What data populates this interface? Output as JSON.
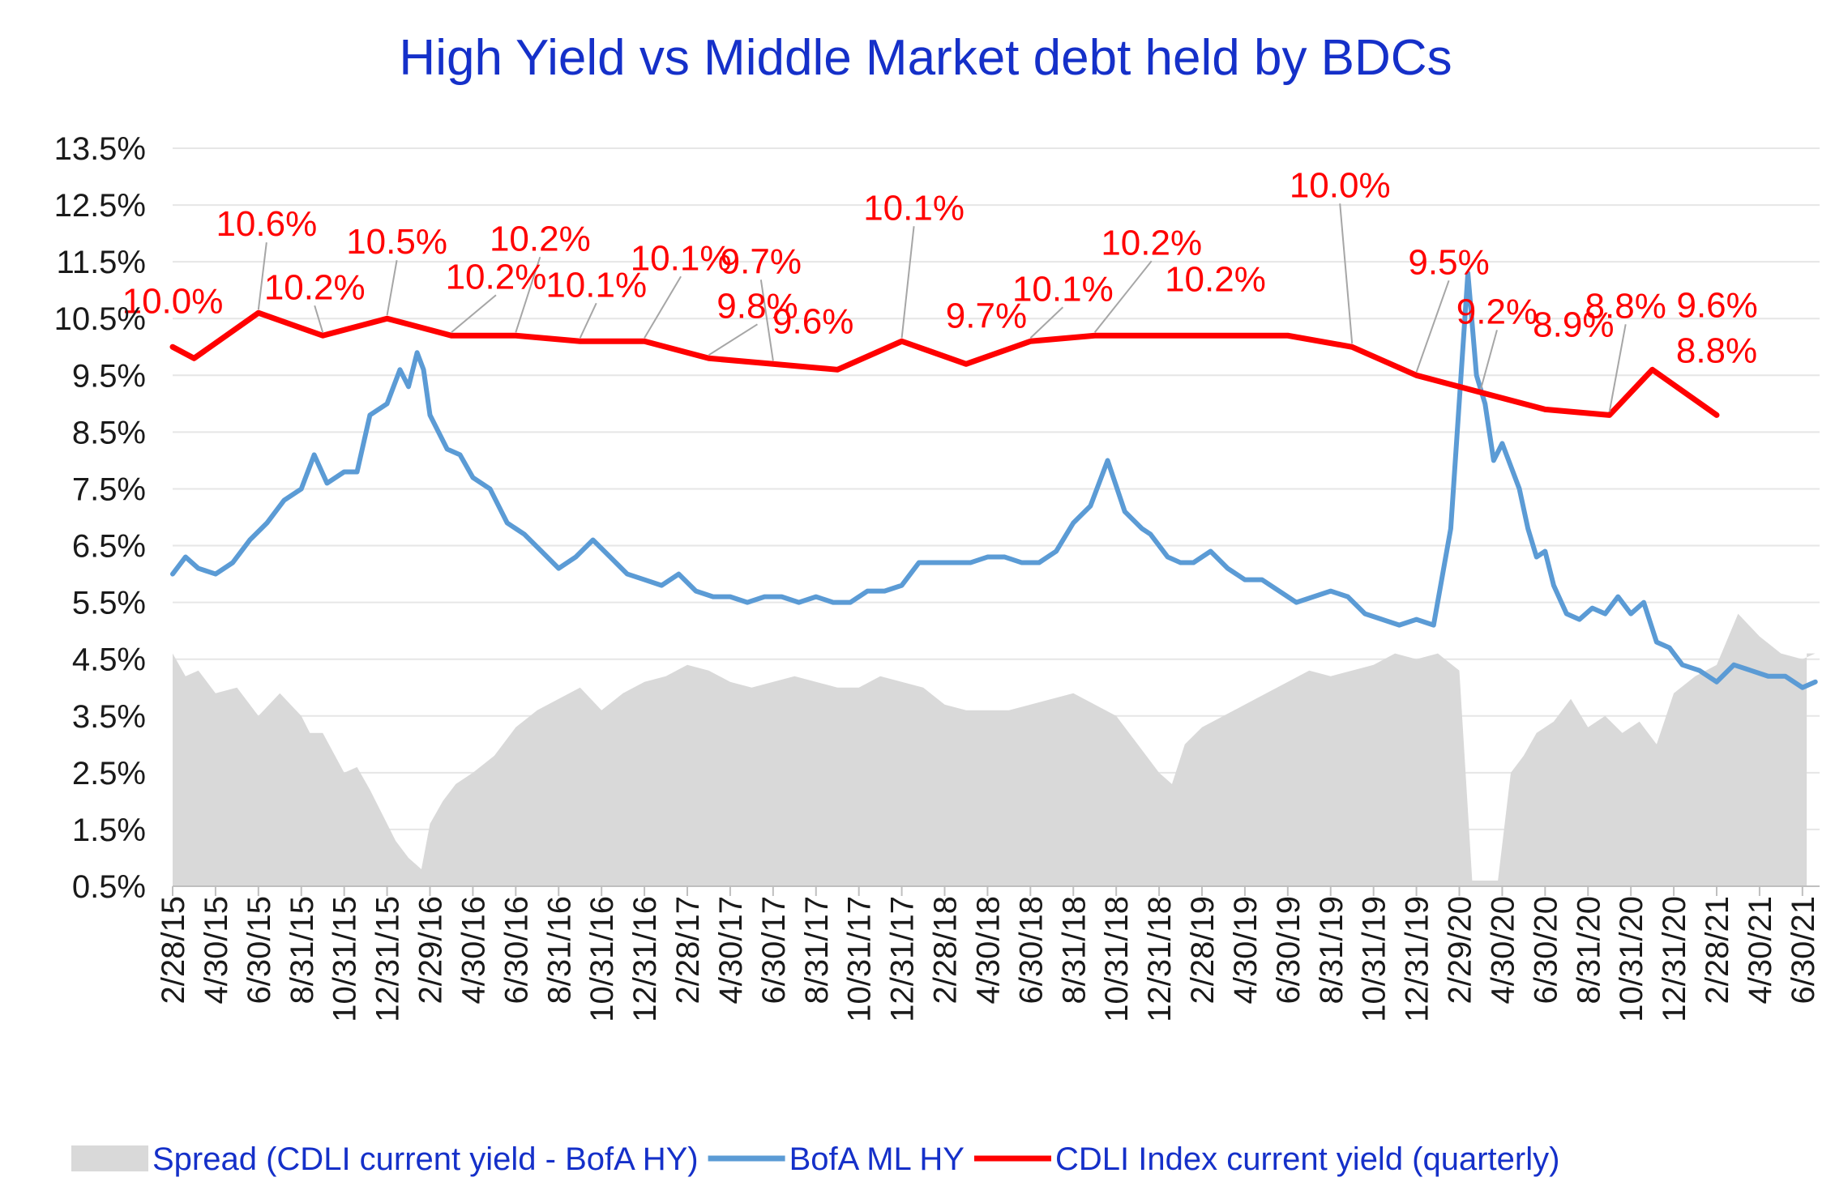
{
  "chart_data": {
    "type": "line",
    "title": "High Yield  vs  Middle Market debt held by BDCs",
    "xlabel": "",
    "ylabel": "",
    "ylim": [
      0.5,
      13.5
    ],
    "yticks": [
      "0.5%",
      "1.5%",
      "2.5%",
      "3.5%",
      "4.5%",
      "5.5%",
      "6.5%",
      "7.5%",
      "8.5%",
      "9.5%",
      "10.5%",
      "11.5%",
      "12.5%",
      "13.5%"
    ],
    "xticks": [
      "2/28/15",
      "4/30/15",
      "6/30/15",
      "8/31/15",
      "10/31/15",
      "12/31/15",
      "2/29/16",
      "4/30/16",
      "6/30/16",
      "8/31/16",
      "10/31/16",
      "12/31/16",
      "2/28/17",
      "4/30/17",
      "6/30/17",
      "8/31/17",
      "10/31/17",
      "12/31/17",
      "2/28/18",
      "4/30/18",
      "6/30/18",
      "8/31/18",
      "10/31/18",
      "12/31/18",
      "2/28/19",
      "4/30/19",
      "6/30/19",
      "8/31/19",
      "10/31/19",
      "12/31/19",
      "2/29/20",
      "4/30/20",
      "6/30/20",
      "8/31/20",
      "10/31/20",
      "12/31/20",
      "2/28/21",
      "4/30/21",
      "6/30/21"
    ],
    "grid": true,
    "legend_position": "bottom",
    "series": [
      {
        "name": "Spread (CDLI current yield - BofA HY)",
        "style": "area",
        "color": "#d9d9d9",
        "x": [
          0,
          0.3,
          0.6,
          1,
          1.5,
          2,
          2.5,
          3,
          3.2,
          3.5,
          4,
          4.3,
          4.6,
          5,
          5.2,
          5.5,
          5.8,
          6,
          6.3,
          6.6,
          7,
          7.5,
          8,
          8.5,
          9,
          9.5,
          10,
          10.5,
          11,
          11.5,
          12,
          12.5,
          13,
          13.5,
          14,
          14.5,
          15,
          15.5,
          16,
          16.5,
          17,
          17.5,
          18,
          18.5,
          19,
          19.5,
          20,
          20.5,
          21,
          21.5,
          22,
          22.5,
          23,
          23.3,
          23.6,
          24,
          24.5,
          25,
          25.5,
          26,
          26.5,
          27,
          27.5,
          28,
          28.5,
          29,
          29.5,
          30,
          30.3,
          30.6,
          30.9,
          31.2,
          31.5,
          31.8,
          32.2,
          32.6,
          33,
          33.4,
          33.8,
          34.2,
          34.6,
          35,
          35.5,
          36,
          36.5,
          37,
          37.5,
          38,
          38.3
        ],
        "values": [
          4.6,
          4.2,
          4.3,
          3.9,
          4.0,
          3.5,
          3.9,
          3.5,
          3.2,
          3.2,
          2.5,
          2.6,
          2.2,
          1.6,
          1.3,
          1.0,
          0.8,
          1.6,
          2.0,
          2.3,
          2.5,
          2.8,
          3.3,
          3.6,
          3.8,
          4.0,
          3.6,
          3.9,
          4.1,
          4.2,
          4.4,
          4.3,
          4.1,
          4.0,
          4.1,
          4.2,
          4.1,
          4.0,
          4.0,
          4.2,
          4.1,
          4.0,
          3.7,
          3.6,
          3.6,
          3.6,
          3.7,
          3.8,
          3.9,
          3.7,
          3.5,
          3.0,
          2.5,
          2.3,
          3.0,
          3.3,
          3.5,
          3.7,
          3.9,
          4.1,
          4.3,
          4.2,
          4.3,
          4.4,
          4.6,
          4.5,
          4.6,
          4.3,
          0.6,
          0.6,
          0.6,
          2.5,
          2.8,
          3.2,
          3.4,
          3.8,
          3.3,
          3.5,
          3.2,
          3.4,
          3.0,
          3.9,
          4.2,
          4.4,
          5.3,
          4.9,
          4.6,
          4.5,
          4.6
        ],
        "hidden_after_x": 38.1
      },
      {
        "name": "BofA ML HY",
        "style": "line",
        "color": "#5b9bd5",
        "x": [
          0,
          0.3,
          0.6,
          1,
          1.4,
          1.8,
          2.2,
          2.6,
          3,
          3.3,
          3.6,
          4,
          4.3,
          4.6,
          5,
          5.3,
          5.5,
          5.7,
          5.85,
          6,
          6.2,
          6.4,
          6.7,
          7,
          7.4,
          7.8,
          8.2,
          8.6,
          9,
          9.4,
          9.8,
          10.2,
          10.6,
          11,
          11.4,
          11.8,
          12.2,
          12.6,
          13,
          13.4,
          13.8,
          14.2,
          14.6,
          15,
          15.4,
          15.8,
          16.2,
          16.6,
          17,
          17.4,
          17.8,
          18.2,
          18.6,
          19,
          19.4,
          19.8,
          20.2,
          20.6,
          21,
          21.4,
          21.8,
          22.2,
          22.6,
          22.8,
          23,
          23.2,
          23.5,
          23.8,
          24.2,
          24.6,
          25,
          25.4,
          25.8,
          26.2,
          26.6,
          27,
          27.4,
          27.8,
          28.2,
          28.6,
          29,
          29.4,
          29.8,
          30.2,
          30.4,
          30.6,
          30.8,
          31,
          31.2,
          31.4,
          31.6,
          31.8,
          32,
          32.2,
          32.5,
          32.8,
          33.1,
          33.4,
          33.7,
          34,
          34.3,
          34.6,
          34.9,
          35.2,
          35.6,
          36,
          36.4,
          36.8,
          37.2,
          37.6,
          38,
          38.3
        ],
        "values": [
          6.0,
          6.3,
          6.1,
          6.0,
          6.2,
          6.6,
          6.9,
          7.3,
          7.5,
          8.1,
          7.6,
          7.8,
          7.8,
          8.8,
          9.0,
          9.6,
          9.3,
          9.9,
          9.6,
          8.8,
          8.5,
          8.2,
          8.1,
          7.7,
          7.5,
          6.9,
          6.7,
          6.4,
          6.1,
          6.3,
          6.6,
          6.3,
          6.0,
          5.9,
          5.8,
          6.0,
          5.7,
          5.6,
          5.6,
          5.5,
          5.6,
          5.6,
          5.5,
          5.6,
          5.5,
          5.5,
          5.7,
          5.7,
          5.8,
          6.2,
          6.2,
          6.2,
          6.2,
          6.3,
          6.3,
          6.2,
          6.2,
          6.4,
          6.9,
          7.2,
          8.0,
          7.1,
          6.8,
          6.7,
          6.5,
          6.3,
          6.2,
          6.2,
          6.4,
          6.1,
          5.9,
          5.9,
          5.7,
          5.5,
          5.6,
          5.7,
          5.6,
          5.3,
          5.2,
          5.1,
          5.2,
          5.1,
          6.8,
          11.3,
          9.5,
          9.0,
          8.0,
          8.3,
          7.9,
          7.5,
          6.8,
          6.3,
          6.4,
          5.8,
          5.3,
          5.2,
          5.4,
          5.3,
          5.6,
          5.3,
          5.5,
          4.8,
          4.7,
          4.4,
          4.3,
          4.1,
          4.4,
          4.3,
          4.2,
          4.2,
          4.0,
          4.1
        ]
      },
      {
        "name": "CDLI Index current yield (quarterly)",
        "style": "line",
        "color": "#ff0000",
        "x": [
          0,
          0.5,
          2,
          3.5,
          5,
          6.5,
          8,
          9.5,
          11,
          12.5,
          14,
          15.5,
          17,
          18.5,
          20,
          21.5,
          23,
          24.5,
          26,
          27.5,
          29,
          30.5,
          32,
          33.5,
          34.5,
          36
        ],
        "values": [
          10.0,
          9.8,
          10.6,
          10.2,
          10.5,
          10.2,
          10.2,
          10.1,
          10.1,
          9.8,
          9.7,
          9.6,
          10.1,
          9.7,
          10.1,
          10.2,
          10.2,
          10.2,
          10.2,
          10.0,
          9.5,
          9.2,
          8.9,
          8.8,
          9.6,
          8.8
        ],
        "data_labels": [
          {
            "text": "10.0%",
            "index": 0
          },
          {
            "text": "10.6%",
            "index": 2
          },
          {
            "text": "10.2%",
            "index": 3
          },
          {
            "text": "10.5%",
            "index": 4
          },
          {
            "text": "10.2%",
            "index": 5
          },
          {
            "text": "10.2%",
            "index": 6
          },
          {
            "text": "10.1%",
            "index": 7
          },
          {
            "text": "10.1%",
            "index": 8
          },
          {
            "text": "9.8%",
            "index": 9
          },
          {
            "text": "9.7%",
            "index": 10
          },
          {
            "text": "9.6%",
            "index": 11
          },
          {
            "text": "10.1%",
            "index": 12
          },
          {
            "text": "9.7%",
            "index": 13
          },
          {
            "text": "10.1%",
            "index": 14
          },
          {
            "text": "10.2%",
            "index": 15
          },
          {
            "text": "10.2%",
            "index": 17
          },
          {
            "text": "10.0%",
            "index": 19
          },
          {
            "text": "9.5%",
            "index": 20
          },
          {
            "text": "9.2%",
            "index": 21
          },
          {
            "text": "8.9%",
            "index": 22
          },
          {
            "text": "8.8%",
            "index": 23
          },
          {
            "text": "9.6%",
            "index": 24
          },
          {
            "text": "8.8%",
            "index": 25
          }
        ]
      }
    ]
  }
}
